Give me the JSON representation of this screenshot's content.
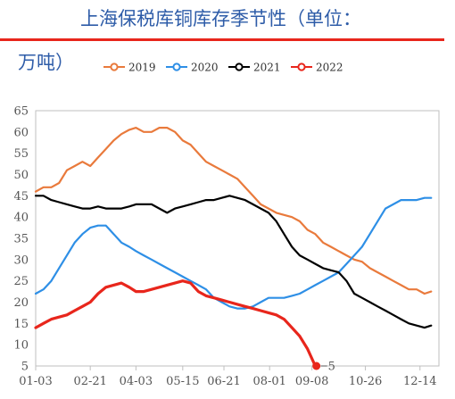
{
  "chart_data": {
    "type": "line",
    "title": "上海保税库铜库存季节性（单位：万吨）",
    "title_line1": "上海保税库铜库存季节性（单位：",
    "title_line2": "万吨）",
    "xlabel": "",
    "ylabel": "",
    "x_ticks": [
      "01-03",
      "02-21",
      "04-03",
      "05-15",
      "06-21",
      "08-01",
      "09-08",
      "10-26",
      "12-14"
    ],
    "x_tick_day": [
      3,
      52,
      93,
      135,
      172,
      213,
      251,
      299,
      348
    ],
    "x_range_day": [
      3,
      365
    ],
    "ylim": [
      5,
      65
    ],
    "y_ticks": [
      5,
      10,
      15,
      20,
      25,
      30,
      35,
      40,
      45,
      50,
      55,
      60,
      65
    ],
    "legend_position": "top",
    "grid": false,
    "accent_line_color": "#e8261c",
    "annotation": {
      "text": "5",
      "series": "2022",
      "x_day": 255,
      "y": 5
    },
    "series": [
      {
        "name": "2019",
        "color": "#e97a3c",
        "x_day": [
          3,
          10,
          17,
          24,
          31,
          38,
          45,
          52,
          59,
          66,
          73,
          80,
          87,
          93,
          100,
          107,
          114,
          121,
          128,
          135,
          142,
          149,
          156,
          163,
          170,
          177,
          184,
          191,
          198,
          205,
          212,
          219,
          226,
          233,
          240,
          247,
          254,
          261,
          268,
          275,
          282,
          289,
          296,
          303,
          310,
          317,
          324,
          331,
          338,
          345,
          352,
          358
        ],
        "values": [
          46,
          47,
          47,
          48,
          51,
          52,
          53,
          52,
          54,
          56,
          58,
          59.5,
          60.5,
          61,
          60,
          60,
          61,
          61,
          60,
          58,
          57,
          55,
          53,
          52,
          51,
          50,
          49,
          47,
          45,
          43,
          42,
          41,
          40.5,
          40,
          39,
          37,
          36,
          34,
          33,
          32,
          31,
          30,
          29.5,
          28,
          27,
          26,
          25,
          24,
          23,
          23,
          22,
          22.5
        ]
      },
      {
        "name": "2020",
        "color": "#2e8fe6",
        "x_day": [
          3,
          10,
          17,
          24,
          31,
          38,
          45,
          52,
          59,
          66,
          73,
          80,
          87,
          93,
          100,
          107,
          114,
          121,
          128,
          135,
          142,
          149,
          156,
          163,
          170,
          177,
          184,
          191,
          198,
          205,
          212,
          219,
          226,
          233,
          240,
          247,
          254,
          261,
          268,
          275,
          282,
          289,
          296,
          303,
          310,
          317,
          324,
          331,
          338,
          345,
          352,
          358
        ],
        "values": [
          22,
          23,
          25,
          28,
          31,
          34,
          36,
          37.5,
          38,
          38,
          36,
          34,
          33,
          32,
          31,
          30,
          29,
          28,
          27,
          26,
          25,
          24,
          23,
          21,
          20,
          19,
          18.5,
          18.5,
          19,
          20,
          21,
          21,
          21,
          21.5,
          22,
          23,
          24,
          25,
          26,
          27,
          29,
          31,
          33,
          36,
          39,
          42,
          43,
          44,
          44,
          44,
          44.5,
          44.5
        ]
      },
      {
        "name": "2021",
        "color": "#000000",
        "x_day": [
          3,
          10,
          17,
          24,
          31,
          38,
          45,
          52,
          59,
          66,
          73,
          80,
          87,
          93,
          100,
          107,
          114,
          121,
          128,
          135,
          142,
          149,
          156,
          163,
          170,
          177,
          184,
          191,
          198,
          205,
          212,
          219,
          226,
          233,
          240,
          247,
          254,
          261,
          268,
          275,
          282,
          289,
          296,
          303,
          310,
          317,
          324,
          331,
          338,
          345,
          352,
          358
        ],
        "values": [
          45,
          45,
          44,
          43.5,
          43,
          42.5,
          42,
          42,
          42.5,
          42,
          42,
          42,
          42.5,
          43,
          43,
          43,
          42,
          41,
          42,
          42.5,
          43,
          43.5,
          44,
          44,
          44.5,
          45,
          44.5,
          44,
          43,
          42,
          41,
          39,
          36,
          33,
          31,
          30,
          29,
          28,
          27.5,
          27,
          25,
          22,
          21,
          20,
          19,
          18,
          17,
          16,
          15,
          14.5,
          14,
          14.5
        ]
      },
      {
        "name": "2022",
        "color": "#e8261c",
        "x_day": [
          3,
          10,
          17,
          24,
          31,
          38,
          45,
          52,
          59,
          66,
          73,
          80,
          87,
          93,
          100,
          107,
          114,
          121,
          128,
          135,
          142,
          149,
          156,
          163,
          170,
          177,
          184,
          191,
          198,
          205,
          212,
          219,
          226,
          233,
          240,
          247,
          254
        ],
        "values": [
          14,
          15,
          16,
          16.5,
          17,
          18,
          19,
          20,
          22,
          23.5,
          24,
          24.5,
          23.5,
          22.5,
          22.5,
          23,
          23.5,
          24,
          24.5,
          25,
          24.5,
          22.5,
          21.5,
          21,
          20.5,
          20,
          19.5,
          19,
          18.5,
          18,
          17.5,
          17,
          16,
          14,
          12,
          9,
          5
        ]
      }
    ]
  }
}
